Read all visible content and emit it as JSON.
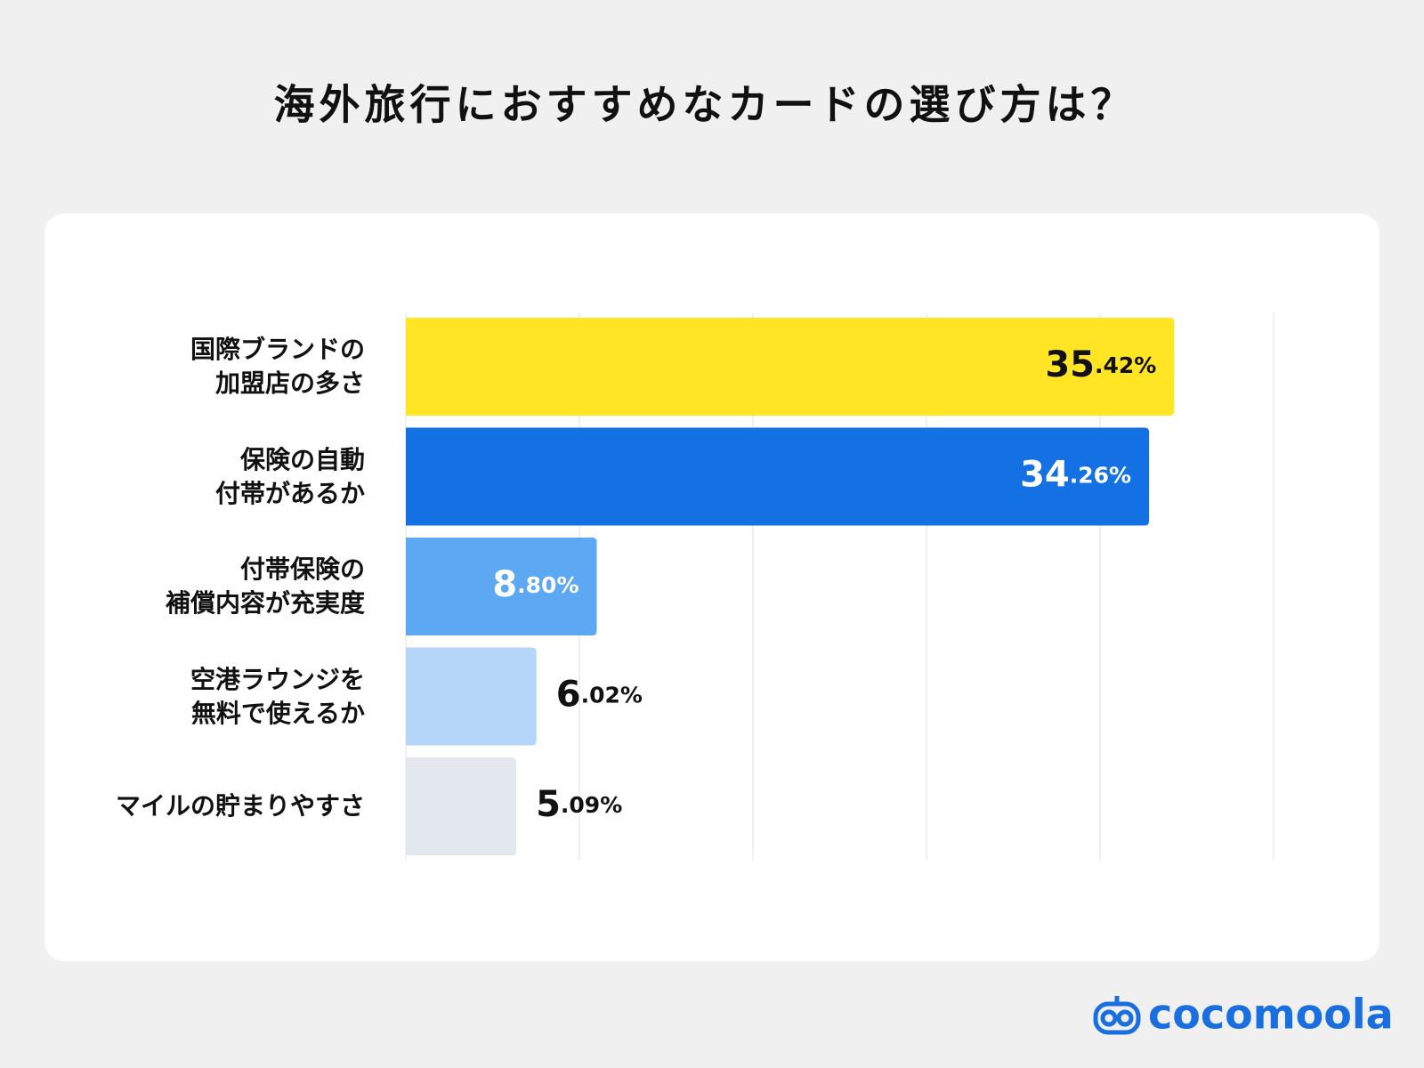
{
  "chart_data": {
    "type": "barh",
    "title": "海外旅行におすすめなカードの選び方は？",
    "categories": [
      "国際ブランドの\n加盟店の多さ",
      "保険の自動\n付帯があるか",
      "付帯保険の\n補償内容が充実度",
      "空港ラウンジを\n無料で使えるか",
      "マイルの貯まりやすさ"
    ],
    "values": [
      35.42,
      34.26,
      8.8,
      6.02,
      5.09
    ],
    "value_labels": [
      "35.42%",
      "34.26%",
      "8.80%",
      "6.02%",
      "5.09%"
    ],
    "colors": [
      "#ffe524",
      "#1371e3",
      "#5ca8f3",
      "#b6d6f8",
      "#e3e8ef"
    ],
    "xlim": [
      0,
      40
    ],
    "xticks": [
      0,
      8,
      16,
      24,
      32,
      40
    ],
    "grid": true
  },
  "logo": "cocomoola"
}
